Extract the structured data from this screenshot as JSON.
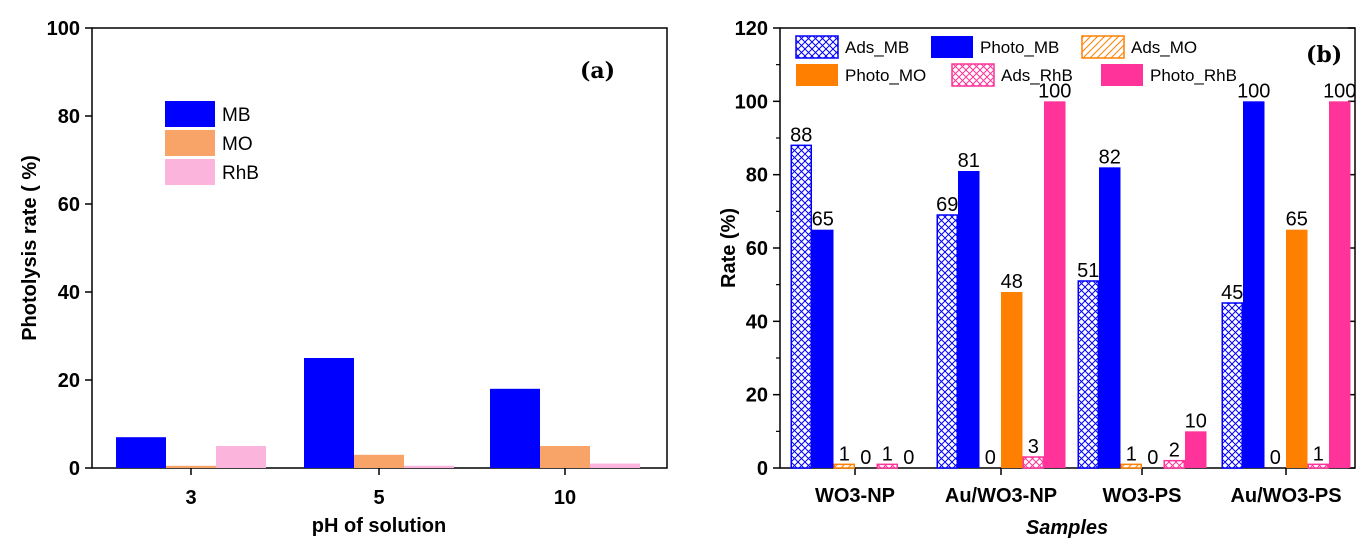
{
  "chart_data": [
    {
      "type": "bar",
      "panel_tag": "(a)",
      "categories": [
        "3",
        "5",
        "10"
      ],
      "series": [
        {
          "name": "MB",
          "values": [
            7,
            25,
            18
          ],
          "color": "#0000ff"
        },
        {
          "name": "MO",
          "values": [
            0.5,
            3,
            5
          ],
          "color": "#f8a468"
        },
        {
          "name": "RhB",
          "values": [
            5,
            0.5,
            1
          ],
          "color": "#fbb4dc"
        }
      ],
      "xlabel": "pH of solution",
      "ylabel": "Photolysis  rate ( %)",
      "ylim": [
        0,
        100
      ],
      "yticks": [
        "0",
        "20",
        "40",
        "60",
        "80",
        "100"
      ],
      "legend_placement": "upper-left",
      "grid": false
    },
    {
      "type": "bar",
      "panel_tag": "(b)",
      "categories": [
        "WO3-NP",
        "Au/WO3-NP",
        "WO3-PS",
        "Au/WO3-PS"
      ],
      "series": [
        {
          "name": "Ads_MB",
          "values": [
            88,
            69,
            51,
            45
          ],
          "labels": [
            "88",
            "69",
            "51",
            "45"
          ],
          "color": "#0000ff",
          "fill": "hatch"
        },
        {
          "name": "Photo_MB",
          "values": [
            65,
            81,
            82,
            100
          ],
          "labels": [
            "65",
            "81",
            "82",
            "100"
          ],
          "color": "#0000ff",
          "fill": "solid"
        },
        {
          "name": "Ads_MO",
          "values": [
            1,
            0,
            1,
            0
          ],
          "labels": [
            "1",
            "0",
            "1",
            "0"
          ],
          "color": "#ff8000",
          "fill": "hatch"
        },
        {
          "name": "Photo_MO",
          "values": [
            0,
            48,
            0,
            65
          ],
          "labels": [
            "0",
            "48",
            "0",
            "65"
          ],
          "color": "#ff8000",
          "fill": "solid"
        },
        {
          "name": "Ads_RhB",
          "values": [
            1,
            3,
            2,
            1
          ],
          "labels": [
            "1",
            "3",
            "2",
            "1"
          ],
          "color": "#ff3399",
          "fill": "hatch"
        },
        {
          "name": "Photo_RhB",
          "values": [
            0,
            100,
            10,
            100
          ],
          "labels": [
            "0",
            "100",
            "10",
            "100"
          ],
          "color": "#ff3399",
          "fill": "solid"
        }
      ],
      "xlabel": "Samples",
      "ylabel": "Rate (%)",
      "ylim": [
        0,
        120
      ],
      "yticks": [
        "0",
        "20",
        "40",
        "60",
        "80",
        "100",
        "120"
      ],
      "legend_placement": "top",
      "grid": false
    }
  ]
}
